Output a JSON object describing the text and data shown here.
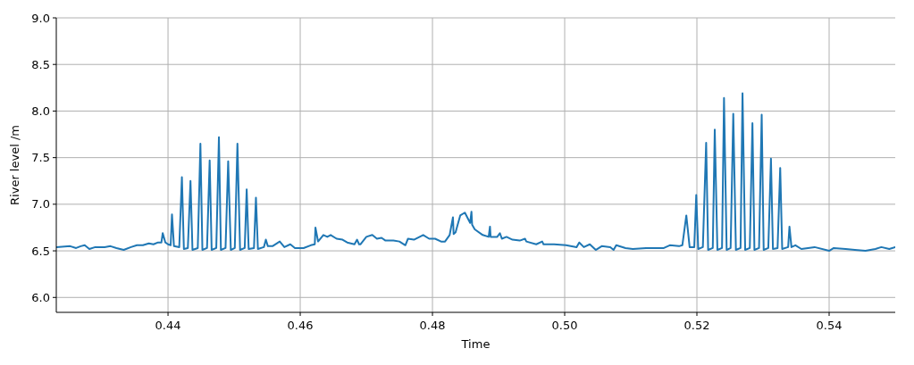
{
  "chart_data": {
    "type": "line",
    "xlabel": "Time",
    "ylabel": "River level /m",
    "xlim": [
      0.4231,
      0.55
    ],
    "ylim": [
      5.84,
      9.0
    ],
    "xticks": [
      0.44,
      0.46,
      0.48,
      {
        "value": 0.5,
        "label": "0.50"
      },
      0.52,
      0.54
    ],
    "yticks": [
      {
        "value": 6,
        "label": "6.0"
      },
      6.5,
      {
        "value": 7,
        "label": "7.0"
      },
      7.5,
      {
        "value": 8,
        "label": "8.0"
      },
      8.5,
      {
        "value": 9,
        "label": "9.0"
      }
    ],
    "grid": true,
    "x": [
      0.4231,
      0.4252,
      0.4261,
      0.4268,
      0.4274,
      0.4281,
      0.429,
      0.4304,
      0.4313,
      0.4322,
      0.4333,
      0.4344,
      0.4353,
      0.4362,
      0.4371,
      0.4378,
      0.4385,
      0.439,
      0.4392,
      0.4396,
      0.44,
      0.4404,
      0.4406,
      0.4409,
      0.4417,
      0.4421,
      0.4424,
      0.443,
      0.4434,
      0.4437,
      0.4445,
      0.4449,
      0.4452,
      0.4459,
      0.4463,
      0.4466,
      0.4473,
      0.4477,
      0.448,
      0.4487,
      0.4491,
      0.4495,
      0.4501,
      0.4505,
      0.4509,
      0.4516,
      0.4519,
      0.4522,
      0.453,
      0.4533,
      0.4536,
      0.4545,
      0.4548,
      0.4551,
      0.4558,
      0.4569,
      0.4576,
      0.4585,
      0.4592,
      0.4605,
      0.4616,
      0.4622,
      0.4623,
      0.4627,
      0.4635,
      0.4641,
      0.4646,
      0.4655,
      0.4664,
      0.4671,
      0.4682,
      0.4686,
      0.4689,
      0.4691,
      0.47,
      0.4709,
      0.4716,
      0.4723,
      0.4729,
      0.4741,
      0.475,
      0.4759,
      0.4763,
      0.4772,
      0.4786,
      0.4795,
      0.4804,
      0.4813,
      0.4819,
      0.4826,
      0.4831,
      0.4832,
      0.4835,
      0.4842,
      0.4849,
      0.4854,
      0.4857,
      0.4859,
      0.486,
      0.4864,
      0.4876,
      0.4885,
      0.4887,
      0.4888,
      0.4898,
      0.4902,
      0.4905,
      0.4912,
      0.4921,
      0.4932,
      0.494,
      0.4942,
      0.4957,
      0.4966,
      0.4968,
      0.4984,
      0.5002,
      0.5018,
      0.5022,
      0.5029,
      0.5038,
      0.5047,
      0.5056,
      0.5069,
      0.5074,
      0.5078,
      0.5092,
      0.5103,
      0.5123,
      0.5137,
      0.515,
      0.5159,
      0.5173,
      0.5178,
      0.5184,
      0.5189,
      0.5196,
      0.5199,
      0.5202,
      0.5209,
      0.5214,
      0.5217,
      0.5224,
      0.5227,
      0.5231,
      0.5238,
      0.5241,
      0.5245,
      0.5251,
      0.5255,
      0.5259,
      0.5266,
      0.5269,
      0.5273,
      0.528,
      0.5284,
      0.5287,
      0.5294,
      0.5298,
      0.5301,
      0.5308,
      0.5312,
      0.5315,
      0.5322,
      0.5326,
      0.5329,
      0.5338,
      0.534,
      0.5343,
      0.5349,
      0.5358,
      0.5378,
      0.54,
      0.5407,
      0.5425,
      0.5439,
      0.5455,
      0.547,
      0.5479,
      0.5491,
      0.55
    ],
    "series": [
      {
        "color": "#1f77b4",
        "values": [
          6.54,
          6.55,
          6.53,
          6.55,
          6.56,
          6.52,
          6.54,
          6.54,
          6.55,
          6.53,
          6.51,
          6.54,
          6.56,
          6.56,
          6.58,
          6.57,
          6.59,
          6.59,
          6.69,
          6.59,
          6.57,
          6.56,
          6.89,
          6.55,
          6.54,
          7.29,
          6.52,
          6.53,
          7.25,
          6.51,
          6.53,
          7.65,
          6.51,
          6.53,
          7.47,
          6.51,
          6.53,
          7.72,
          6.51,
          6.53,
          7.46,
          6.51,
          6.53,
          7.65,
          6.51,
          6.53,
          7.16,
          6.52,
          6.53,
          7.07,
          6.52,
          6.54,
          6.62,
          6.55,
          6.55,
          6.6,
          6.54,
          6.57,
          6.53,
          6.53,
          6.56,
          6.57,
          6.75,
          6.6,
          6.67,
          6.65,
          6.67,
          6.63,
          6.62,
          6.59,
          6.57,
          6.62,
          6.57,
          6.57,
          6.65,
          6.67,
          6.63,
          6.64,
          6.61,
          6.61,
          6.6,
          6.56,
          6.63,
          6.62,
          6.67,
          6.63,
          6.63,
          6.6,
          6.6,
          6.67,
          6.86,
          6.68,
          6.7,
          6.88,
          6.91,
          6.84,
          6.8,
          6.92,
          6.78,
          6.73,
          6.67,
          6.65,
          6.76,
          6.65,
          6.65,
          6.69,
          6.63,
          6.65,
          6.62,
          6.61,
          6.63,
          6.6,
          6.57,
          6.6,
          6.57,
          6.57,
          6.56,
          6.54,
          6.59,
          6.54,
          6.57,
          6.51,
          6.55,
          6.54,
          6.51,
          6.56,
          6.53,
          6.52,
          6.53,
          6.53,
          6.53,
          6.56,
          6.55,
          6.56,
          6.88,
          6.54,
          6.54,
          7.1,
          6.52,
          6.54,
          7.66,
          6.51,
          6.53,
          7.8,
          6.51,
          6.53,
          8.14,
          6.51,
          6.53,
          7.97,
          6.51,
          6.53,
          8.19,
          6.51,
          6.53,
          7.87,
          6.51,
          6.53,
          7.96,
          6.51,
          6.53,
          7.49,
          6.52,
          6.53,
          7.39,
          6.52,
          6.54,
          6.76,
          6.54,
          6.56,
          6.52,
          6.54,
          6.5,
          6.53,
          6.52,
          6.51,
          6.5,
          6.52,
          6.54,
          6.52,
          6.54
        ]
      }
    ]
  }
}
